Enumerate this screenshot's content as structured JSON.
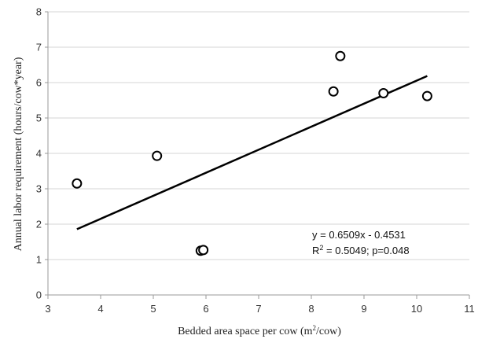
{
  "chart_data": {
    "type": "scatter",
    "title": "",
    "xlabel": "Bedded area space per cow (m",
    "xlabel_sup": "2",
    "xlabel_suffix": "/cow)",
    "ylabel": "Annual labor requirement (hours/cow*year)",
    "xlim": [
      3,
      11
    ],
    "ylim": [
      0,
      8
    ],
    "xticks": [
      3,
      4,
      5,
      6,
      7,
      8,
      9,
      10,
      11
    ],
    "yticks": [
      0,
      1,
      2,
      3,
      4,
      5,
      6,
      7,
      8
    ],
    "grid": {
      "horizontal": true,
      "vertical": false
    },
    "legend": false,
    "points": [
      {
        "x": 3.55,
        "y": 3.15
      },
      {
        "x": 5.07,
        "y": 3.93
      },
      {
        "x": 5.9,
        "y": 1.25
      },
      {
        "x": 5.95,
        "y": 1.27
      },
      {
        "x": 8.42,
        "y": 5.75
      },
      {
        "x": 8.55,
        "y": 6.75
      },
      {
        "x": 9.37,
        "y": 5.7
      },
      {
        "x": 10.2,
        "y": 5.62
      }
    ],
    "trendline": {
      "slope": 0.6509,
      "intercept": -0.4531,
      "x_start": 3.55,
      "x_end": 10.2
    },
    "annotation": {
      "line1": "y = 0.6509x - 0.4531",
      "line2_prefix": "R",
      "line2_sup": "2",
      "line2_suffix": " = 0.5049; p=0.048"
    },
    "colors": {
      "marker_edge": "#000000",
      "marker_fill": "#ffffff",
      "trendline": "#000000",
      "grid": "#d4d4d4"
    }
  }
}
